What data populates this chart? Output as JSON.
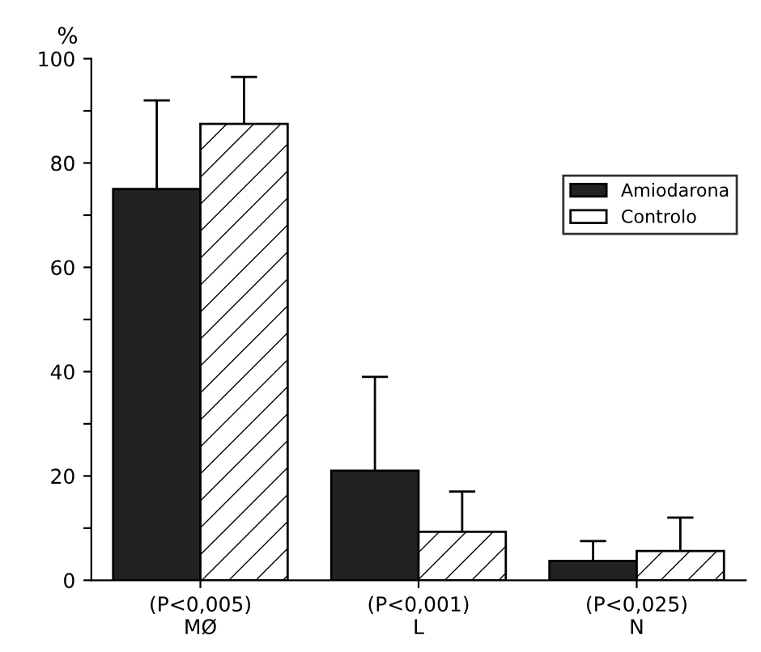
{
  "chart_data": {
    "type": "bar",
    "categories": [
      "(P<0,005)\nMØ",
      "(P<0,001)\nL",
      "(P<0,025)\nN"
    ],
    "ylabel": "%",
    "series": [
      {
        "name": "Amiodarona",
        "color": "#222222",
        "values": [
          75,
          21,
          3.7
        ],
        "errors": [
          [
            75,
            92
          ],
          [
            21,
            39
          ],
          [
            3.7,
            7.5
          ]
        ]
      },
      {
        "name": "Controlo",
        "color": "#ffffff",
        "values": [
          87.5,
          9.3,
          5.6
        ],
        "errors": [
          [
            87.5,
            96.5
          ],
          [
            9.3,
            17
          ],
          [
            5.6,
            12
          ]
        ]
      }
    ],
    "ylim": [
      0,
      100
    ],
    "yticks": [
      0,
      {
        "value": 10,
        "label": null
      },
      20,
      {
        "value": 30,
        "label": null
      },
      40,
      {
        "value": 50,
        "label": null
      },
      60,
      {
        "value": 70,
        "label": null
      },
      80,
      {
        "value": 90,
        "label": null
      },
      100
    ],
    "grid": false,
    "legend": "right"
  }
}
